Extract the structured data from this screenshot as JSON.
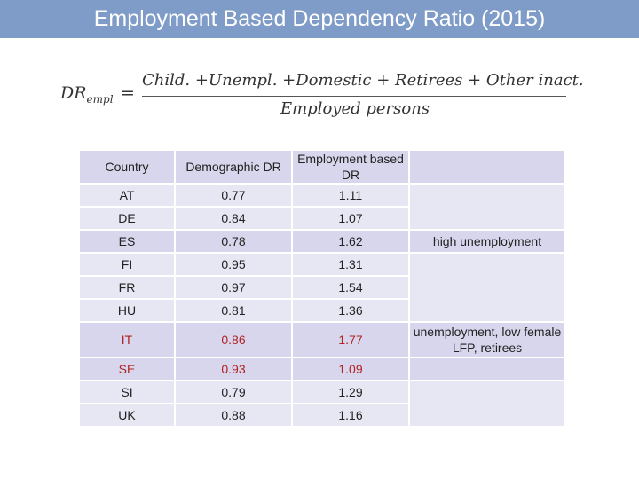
{
  "title": "Employment Based Dependency Ratio (2015)",
  "formula": {
    "lhs_main": "DR",
    "lhs_sub": "empl",
    "equals": "=",
    "numerator": "Child. +Unempl. +Domestic + Retirees + Other inact.",
    "denominator": "Employed persons"
  },
  "table": {
    "headers": [
      "Country",
      "Demographic DR",
      "Employment based DR",
      ""
    ],
    "rows": [
      {
        "country": "AT",
        "demo": "0.77",
        "empl": "1.11",
        "note": ""
      },
      {
        "country": "DE",
        "demo": "0.84",
        "empl": "1.07",
        "note": ""
      },
      {
        "country": "ES",
        "demo": "0.78",
        "empl": "1.62",
        "note": "high unemployment"
      },
      {
        "country": "FI",
        "demo": "0.95",
        "empl": "1.31",
        "note": ""
      },
      {
        "country": "FR",
        "demo": "0.97",
        "empl": "1.54",
        "note": ""
      },
      {
        "country": "HU",
        "demo": "0.81",
        "empl": "1.36",
        "note": ""
      },
      {
        "country": "IT",
        "demo": "0.86",
        "empl": "1.77",
        "note": "unemployment, low female LFP, retirees"
      },
      {
        "country": "SE",
        "demo": "0.93",
        "empl": "1.09",
        "note": ""
      },
      {
        "country": "SI",
        "demo": "0.79",
        "empl": "1.29",
        "note": ""
      },
      {
        "country": "UK",
        "demo": "0.88",
        "empl": "1.16",
        "note": ""
      }
    ],
    "highlight_color": "#b22222"
  }
}
